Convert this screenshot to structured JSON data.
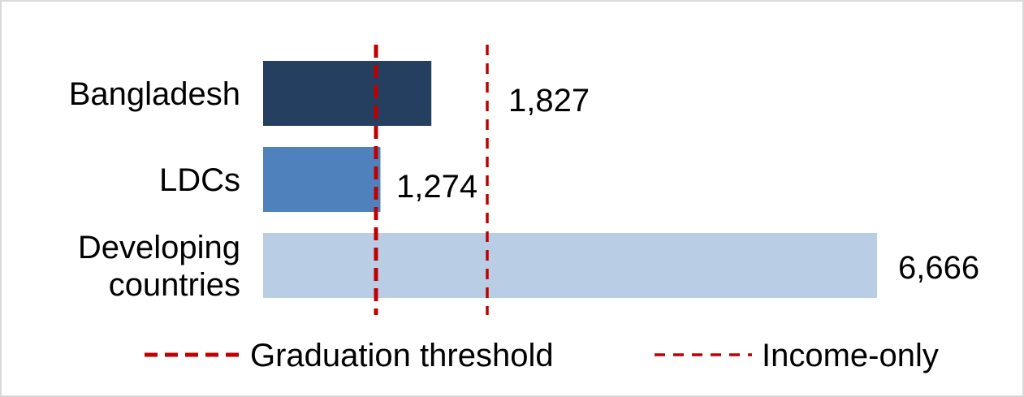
{
  "chart_data": {
    "type": "bar",
    "orientation": "horizontal",
    "categories": [
      [
        "Bangladesh"
      ],
      [
        "LDCs"
      ],
      [
        "Developing",
        "countries"
      ]
    ],
    "values": [
      1827,
      1274,
      6666
    ],
    "value_labels": [
      "1,827",
      "1,274",
      "6,666"
    ],
    "bar_colors": [
      "#243f60",
      "#4f81bd",
      "#b9cde5"
    ],
    "xlim": [
      0,
      6666
    ],
    "grid": false,
    "reference_lines": [
      {
        "name": "Graduation threshold",
        "value": 1230,
        "color": "#c00000",
        "style": "dashed-bold"
      },
      {
        "name": "Income-only",
        "value": 2460,
        "color": "#c00000",
        "style": "dashed"
      }
    ],
    "legend": {
      "position": "bottom"
    }
  }
}
